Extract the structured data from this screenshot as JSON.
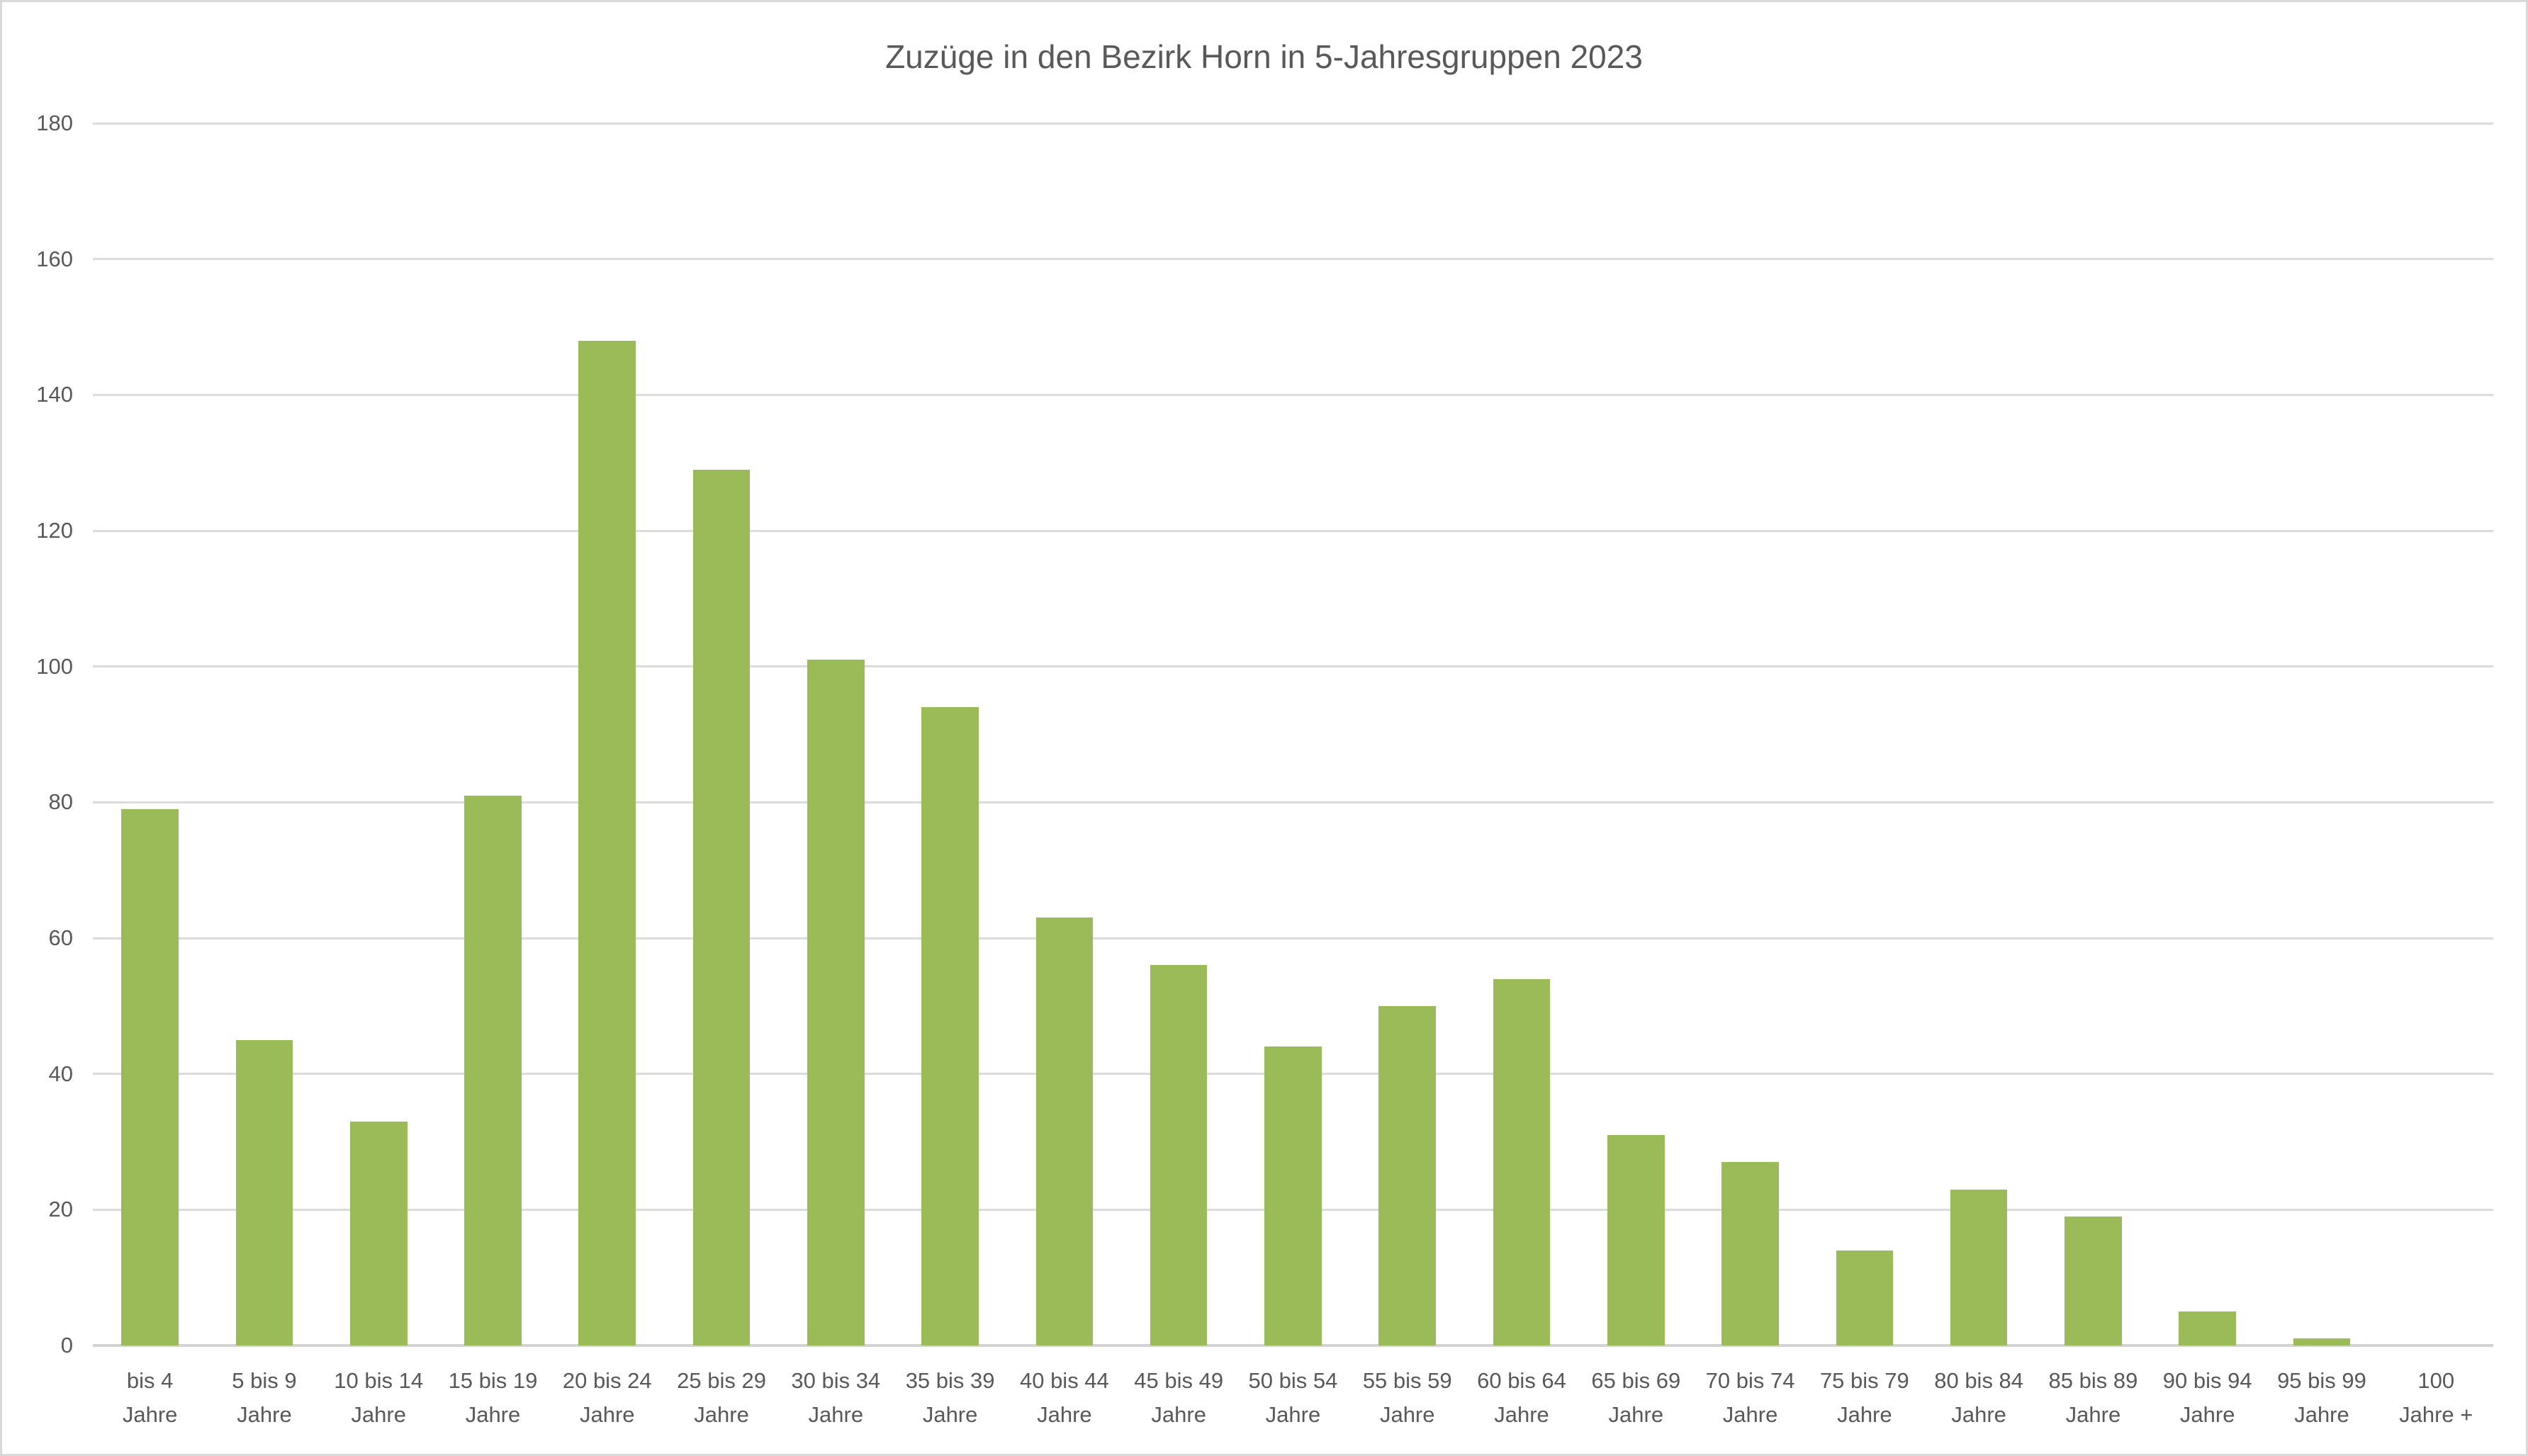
{
  "chart_data": {
    "type": "bar",
    "title": "Zuzüge in den Bezirk Horn in 5-Jahresgruppen 2023",
    "categories": [
      "bis 4 Jahre",
      "5 bis 9 Jahre",
      "10 bis 14 Jahre",
      "15 bis 19 Jahre",
      "20 bis 24 Jahre",
      "25 bis 29 Jahre",
      "30 bis 34 Jahre",
      "35 bis 39 Jahre",
      "40 bis 44 Jahre",
      "45 bis 49 Jahre",
      "50 bis 54 Jahre",
      "55 bis 59 Jahre",
      "60 bis 64 Jahre",
      "65 bis 69 Jahre",
      "70 bis 74 Jahre",
      "75 bis 79 Jahre",
      "80 bis 84 Jahre",
      "85 bis 89 Jahre",
      "90 bis 94 Jahre",
      "95 bis 99 Jahre",
      "100 Jahre +"
    ],
    "category_display_lines": [
      [
        "bis 4",
        "Jahre"
      ],
      [
        "5 bis 9",
        "Jahre"
      ],
      [
        "10 bis 14",
        "Jahre"
      ],
      [
        "15 bis 19",
        "Jahre"
      ],
      [
        "20 bis 24",
        "Jahre"
      ],
      [
        "25 bis 29",
        "Jahre"
      ],
      [
        "30 bis 34",
        "Jahre"
      ],
      [
        "35 bis 39",
        "Jahre"
      ],
      [
        "40 bis 44",
        "Jahre"
      ],
      [
        "45 bis 49",
        "Jahre"
      ],
      [
        "50 bis 54",
        "Jahre"
      ],
      [
        "55 bis 59",
        "Jahre"
      ],
      [
        "60 bis 64",
        "Jahre"
      ],
      [
        "65 bis 69",
        "Jahre"
      ],
      [
        "70 bis 74",
        "Jahre"
      ],
      [
        "75 bis 79",
        "Jahre"
      ],
      [
        "80 bis 84",
        "Jahre"
      ],
      [
        "85 bis 89",
        "Jahre"
      ],
      [
        "90 bis 94",
        "Jahre"
      ],
      [
        "95 bis 99",
        "Jahre"
      ],
      [
        "100",
        "Jahre +"
      ]
    ],
    "values": [
      79,
      45,
      33,
      81,
      148,
      129,
      101,
      94,
      63,
      56,
      44,
      50,
      54,
      31,
      27,
      14,
      23,
      19,
      5,
      1,
      0
    ],
    "xlabel": "",
    "ylabel": "",
    "ylim": [
      0,
      180
    ],
    "yticks": [
      0,
      20,
      40,
      60,
      80,
      100,
      120,
      140,
      160,
      180
    ],
    "grid": "horizontal",
    "legend": "none",
    "colors": {
      "bar": "#9bbb59",
      "gridline": "#dcdcdc",
      "axis_line": "#d3d3d3",
      "text": "#595959",
      "background": "#ffffff",
      "frame_border": "#d9d9d9"
    }
  }
}
